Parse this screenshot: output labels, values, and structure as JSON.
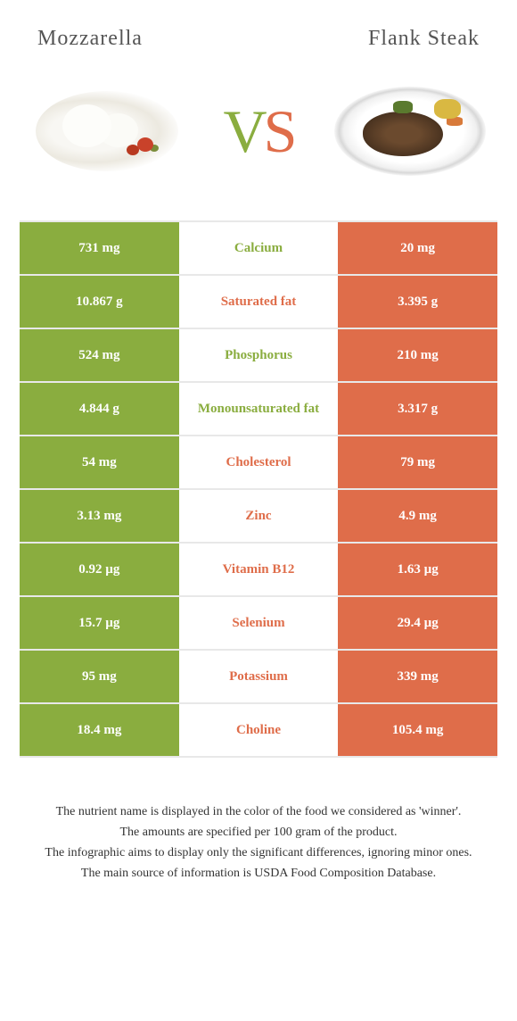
{
  "header": {
    "left_title": "Mozzarella",
    "right_title": "Flank steak"
  },
  "vs": {
    "v": "V",
    "s": "S"
  },
  "colors": {
    "left": "#8aad3f",
    "right": "#df6d4a",
    "border": "#e8e8e8",
    "text": "#333333",
    "title": "#555555"
  },
  "typography": {
    "title_fontsize": 24,
    "vs_fontsize": 68,
    "cell_fontsize": 15,
    "footnote_fontsize": 14
  },
  "rows": [
    {
      "nutrient": "Calcium",
      "left": "731 mg",
      "right": "20 mg",
      "winner": "left"
    },
    {
      "nutrient": "Saturated fat",
      "left": "10.867 g",
      "right": "3.395 g",
      "winner": "right"
    },
    {
      "nutrient": "Phosphorus",
      "left": "524 mg",
      "right": "210 mg",
      "winner": "left"
    },
    {
      "nutrient": "Monounsaturated fat",
      "left": "4.844 g",
      "right": "3.317 g",
      "winner": "left"
    },
    {
      "nutrient": "Cholesterol",
      "left": "54 mg",
      "right": "79 mg",
      "winner": "right"
    },
    {
      "nutrient": "Zinc",
      "left": "3.13 mg",
      "right": "4.9 mg",
      "winner": "right"
    },
    {
      "nutrient": "Vitamin B12",
      "left": "0.92 µg",
      "right": "1.63 µg",
      "winner": "right"
    },
    {
      "nutrient": "Selenium",
      "left": "15.7 µg",
      "right": "29.4 µg",
      "winner": "right"
    },
    {
      "nutrient": "Potassium",
      "left": "95 mg",
      "right": "339 mg",
      "winner": "right"
    },
    {
      "nutrient": "Choline",
      "left": "18.4 mg",
      "right": "105.4 mg",
      "winner": "right"
    }
  ],
  "footnotes": [
    "The nutrient name is displayed in the color of the food we considered as 'winner'.",
    "The amounts are specified per 100 gram of the product.",
    "The infographic aims to display only the significant differences, ignoring minor ones.",
    "The main source of information is USDA Food Composition Database."
  ]
}
